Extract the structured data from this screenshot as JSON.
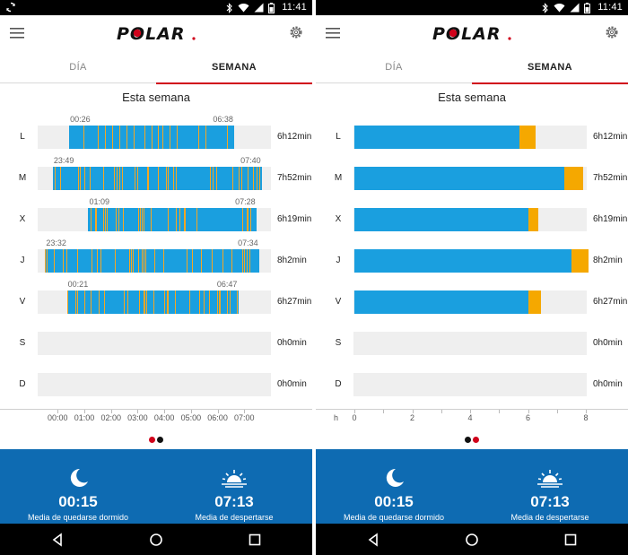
{
  "status": {
    "time": "11:41"
  },
  "tabs": {
    "day": "DÍA",
    "week": "SEMANA"
  },
  "week_title": "Esta semana",
  "colors": {
    "blue": "#1a9fdf",
    "orange": "#f5a800",
    "footer": "#0e6bb2",
    "accent": "#d0021b"
  },
  "left": {
    "rows": [
      {
        "day": "L",
        "duration": "6h12min",
        "start": "00:26",
        "end": "06:38"
      },
      {
        "day": "M",
        "duration": "7h52min",
        "start": "23:49",
        "end": "07:40"
      },
      {
        "day": "X",
        "duration": "6h19min",
        "start": "01:09",
        "end": "07:28"
      },
      {
        "day": "J",
        "duration": "8h2min",
        "start": "23:32",
        "end": "07:34"
      },
      {
        "day": "V",
        "duration": "6h27min",
        "start": "00:21",
        "end": "06:47"
      },
      {
        "day": "S",
        "duration": "0h0min"
      },
      {
        "day": "D",
        "duration": "0h0min"
      }
    ],
    "axis_ticks": [
      "00:00",
      "01:00",
      "02:00",
      "03:00",
      "04:00",
      "05:00",
      "06:00",
      "07:00"
    ]
  },
  "right": {
    "rows": [
      {
        "day": "L",
        "duration": "6h12min",
        "sleep_h": 5.7,
        "awake_h": 0.55
      },
      {
        "day": "M",
        "duration": "7h52min",
        "sleep_h": 7.25,
        "awake_h": 0.65
      },
      {
        "day": "X",
        "duration": "6h19min",
        "sleep_h": 6.0,
        "awake_h": 0.35
      },
      {
        "day": "J",
        "duration": "8h2min",
        "sleep_h": 7.5,
        "awake_h": 0.6
      },
      {
        "day": "V",
        "duration": "6h27min",
        "sleep_h": 6.0,
        "awake_h": 0.45
      },
      {
        "day": "S",
        "duration": "0h0min",
        "sleep_h": 0,
        "awake_h": 0
      },
      {
        "day": "D",
        "duration": "0h0min",
        "sleep_h": 0,
        "awake_h": 0
      }
    ],
    "axis_unit": "h",
    "axis_ticks": [
      "0",
      "2",
      "4",
      "6",
      "8"
    ]
  },
  "footer": {
    "sleep_value": "00:15",
    "sleep_caption": "Media de quedarse dormido",
    "wake_value": "07:13",
    "wake_caption": "Media de despertarse"
  },
  "pager": {
    "left_active": 0,
    "right_active": 1,
    "count": 2
  },
  "icons": {
    "sync": "sync-icon",
    "bluetooth": "bluetooth-icon",
    "wifi": "wifi-icon",
    "signal": "signal-icon",
    "battery": "battery-icon",
    "menu": "menu-icon",
    "settings": "gear-icon",
    "moon": "moon-icon",
    "sunrise": "sunrise-icon",
    "back": "back-icon",
    "home": "home-icon",
    "recents": "recents-icon"
  }
}
